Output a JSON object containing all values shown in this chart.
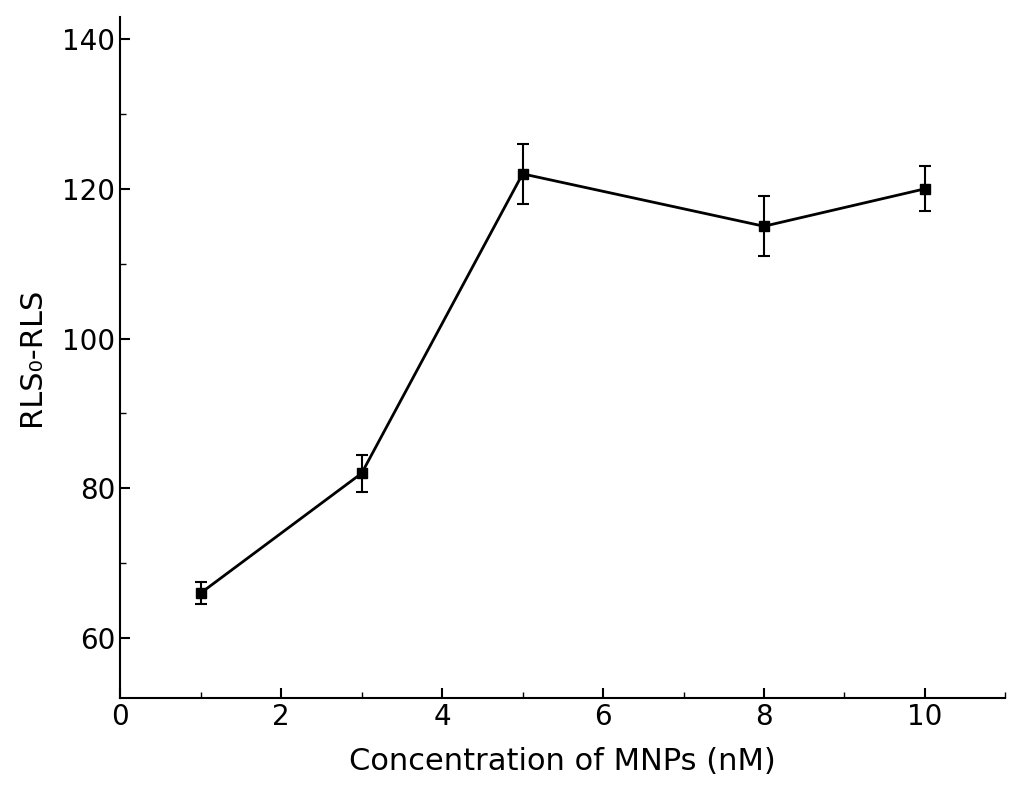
{
  "x": [
    1,
    3,
    5,
    8,
    10
  ],
  "y": [
    66,
    82,
    122,
    115,
    120
  ],
  "yerr": [
    1.5,
    2.5,
    4,
    4,
    3
  ],
  "xlabel": "Concentration of MNPs (nM)",
  "ylabel": "RLS₀-RLS",
  "xlim": [
    0,
    11
  ],
  "ylim": [
    52,
    143
  ],
  "xticks": [
    0,
    2,
    4,
    6,
    8,
    10
  ],
  "yticks": [
    60,
    80,
    100,
    120,
    140
  ],
  "background_color": "#ffffff",
  "line_color": "#000000",
  "marker": "s",
  "markersize": 7,
  "linewidth": 2.0,
  "capsize": 4,
  "xlabel_fontsize": 22,
  "ylabel_fontsize": 22,
  "tick_fontsize": 20,
  "title": ""
}
